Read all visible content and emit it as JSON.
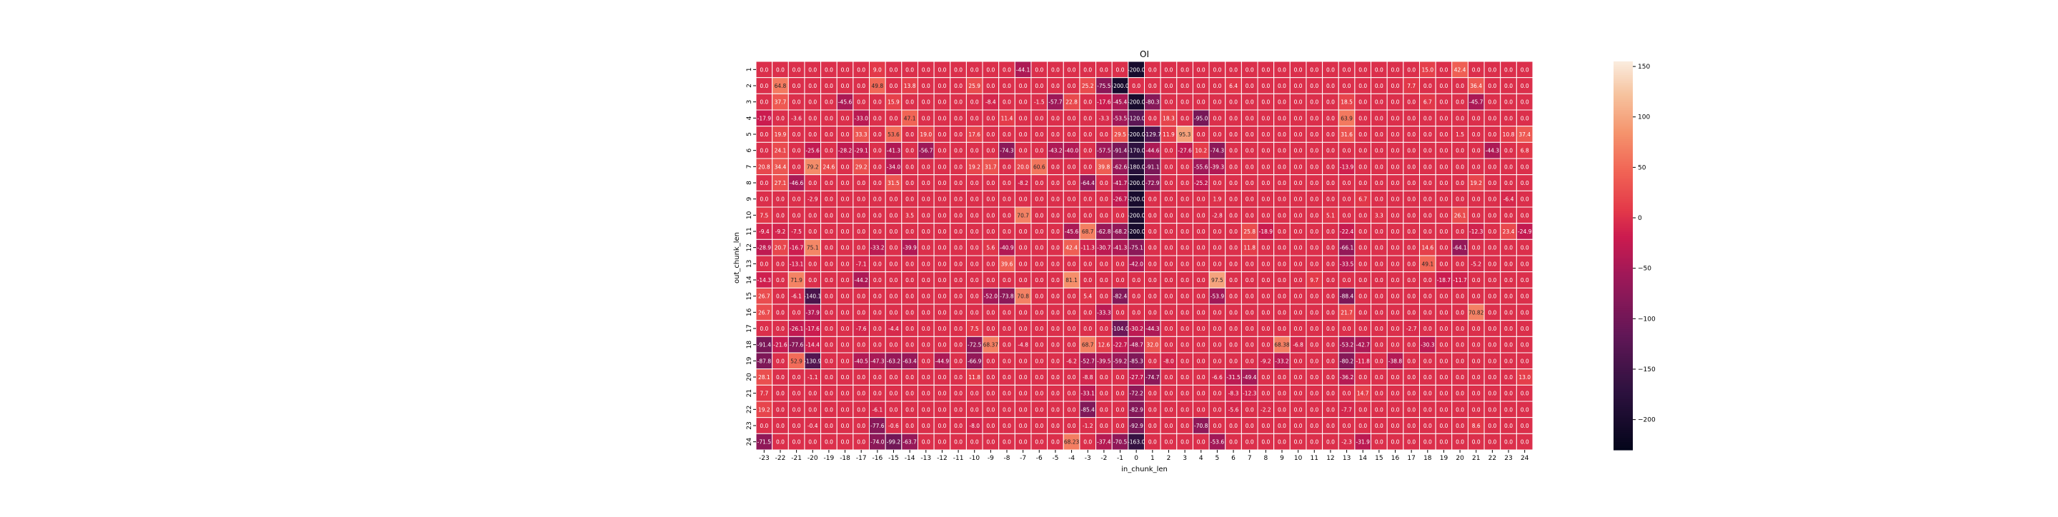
{
  "chart_data": {
    "type": "heatmap",
    "title": "OI",
    "xlabel": "in_chunk_len",
    "ylabel": "out_chunk_len",
    "x_categories": [
      "-23",
      "-22",
      "-21",
      "-20",
      "-19",
      "-18",
      "-17",
      "-16",
      "-15",
      "-14",
      "-13",
      "-12",
      "-11",
      "-10",
      "-9",
      "-8",
      "-7",
      "-6",
      "-5",
      "-4",
      "-3",
      "-2",
      "-1",
      "0",
      "1",
      "2",
      "3",
      "4",
      "5",
      "6",
      "7",
      "8",
      "9",
      "10",
      "11",
      "12",
      "13",
      "14",
      "15",
      "16",
      "17",
      "18",
      "19",
      "20",
      "21",
      "22",
      "23",
      "24"
    ],
    "y_categories": [
      "1",
      "2",
      "3",
      "4",
      "5",
      "6",
      "7",
      "8",
      "9",
      "10",
      "11",
      "12",
      "13",
      "14",
      "15",
      "16",
      "17",
      "18",
      "19",
      "20",
      "21",
      "22",
      "23",
      "24"
    ],
    "values": [
      [
        0,
        0,
        0,
        0,
        0,
        0,
        0,
        9,
        0,
        0,
        0,
        0,
        0,
        0,
        0,
        0,
        -44.1,
        0,
        0,
        0,
        0,
        0,
        0,
        -200,
        0,
        0,
        0,
        0,
        0,
        0,
        0,
        0,
        0,
        0,
        0,
        0,
        0,
        0,
        0,
        0,
        0,
        15,
        0,
        42.4,
        0,
        0,
        0,
        0
      ],
      [
        0,
        64.8,
        0,
        0,
        0,
        0,
        0,
        49.8,
        0,
        13.8,
        0,
        0,
        0,
        25.9,
        0,
        0,
        0,
        0,
        0,
        0,
        25.2,
        -75.5,
        -200,
        0,
        0,
        0,
        0,
        0,
        0,
        6.4,
        0,
        0,
        0,
        0,
        0,
        0,
        0,
        0,
        0,
        0,
        7.7,
        0,
        0,
        0,
        36.4,
        0,
        0,
        0
      ],
      [
        0,
        37.7,
        0,
        0,
        0,
        -45.6,
        0,
        0,
        15.9,
        0,
        0,
        0,
        0,
        0,
        -8.4,
        0,
        0,
        -1.5,
        -57.7,
        22.8,
        0,
        -17.6,
        -45.4,
        -200,
        -80.3,
        0,
        0,
        0,
        0,
        0,
        0,
        0,
        0,
        0,
        0,
        0,
        18.5,
        0,
        0,
        0,
        0,
        6.7,
        0,
        0,
        -45.7,
        0,
        0,
        0
      ],
      [
        -17.9,
        0,
        -3.6,
        0,
        0,
        0,
        -33,
        0,
        0,
        47.1,
        0,
        0,
        0,
        0,
        0,
        11.4,
        0,
        0,
        0,
        0,
        0,
        -3.3,
        -53.5,
        -120,
        0,
        18.3,
        0,
        -95,
        0,
        0,
        0,
        0,
        0,
        0,
        0,
        0,
        63.9,
        0,
        0,
        0,
        0,
        0,
        0,
        0,
        0,
        0,
        0,
        0
      ],
      [
        0,
        19.9,
        0,
        0,
        0,
        0,
        33.3,
        0,
        53.6,
        0,
        19,
        0,
        0,
        17.6,
        0,
        0,
        0,
        0,
        0,
        0,
        0,
        0,
        29.5,
        -200,
        -129.7,
        11.9,
        95.3,
        0,
        0,
        0,
        0,
        0,
        0,
        0,
        0,
        0,
        31.6,
        0,
        0,
        0,
        0,
        0,
        0,
        1.5,
        0,
        0,
        10.8,
        37.4
      ],
      [
        0,
        24.1,
        0,
        -25.6,
        0,
        -28.2,
        -29.1,
        0,
        -41.3,
        0,
        -56.7,
        0,
        0,
        0,
        0,
        -74.3,
        0,
        0,
        -43.2,
        -40,
        0,
        -57.5,
        -91.4,
        -170,
        -44.6,
        0,
        -27.6,
        10.2,
        -74.3,
        0,
        0,
        0,
        0,
        0,
        0,
        0,
        0,
        0,
        0,
        0,
        0,
        0,
        0,
        0,
        0,
        -44.3,
        0,
        6.8
      ],
      [
        20.8,
        34.4,
        0,
        79.2,
        24.6,
        0,
        29.2,
        0,
        -34,
        0,
        0,
        0,
        0,
        19.2,
        31.7,
        0,
        20,
        60.6,
        0,
        0,
        0,
        39.8,
        -62.6,
        -180,
        -91.1,
        0,
        0,
        -55.6,
        -39.3,
        0,
        0,
        0,
        0,
        0,
        0,
        0,
        -13.9,
        0,
        0,
        0,
        0,
        0,
        0,
        0,
        0,
        0,
        0,
        0
      ],
      [
        0,
        27.1,
        -46.6,
        0,
        0,
        0,
        0,
        0,
        31.5,
        0,
        0,
        0,
        0,
        0,
        0,
        0,
        -8.2,
        0,
        0,
        0,
        -64.4,
        0,
        -41.7,
        -200,
        -72.9,
        0,
        0,
        -25.2,
        0,
        0,
        0,
        0,
        0,
        0,
        0,
        0,
        0,
        0,
        0,
        0,
        0,
        0,
        0,
        0,
        19.2,
        0,
        0,
        0
      ],
      [
        0,
        0,
        0,
        -2.9,
        0,
        0,
        0,
        0,
        0,
        0,
        0,
        0,
        0,
        0,
        0,
        0,
        0,
        0,
        0,
        0,
        0,
        0,
        -26.7,
        -200,
        0,
        0,
        0,
        0,
        1.9,
        0,
        0,
        0,
        0,
        0,
        0,
        0,
        0,
        6.7,
        0,
        0,
        0,
        0,
        0,
        0,
        0,
        0,
        -6.4,
        0
      ],
      [
        7.5,
        0,
        0,
        0,
        0,
        0,
        0,
        0,
        0,
        3.5,
        0,
        0,
        0,
        0,
        0,
        0,
        70.7,
        0,
        0,
        0,
        0,
        0,
        0,
        -200,
        0,
        0,
        0,
        0,
        -2.8,
        0,
        0,
        0,
        0,
        0,
        0,
        5.1,
        0,
        0,
        3.3,
        0,
        0,
        0,
        0,
        26.1,
        0,
        0,
        0,
        0
      ],
      [
        -9.4,
        -9.2,
        -7.5,
        0,
        0,
        0,
        0,
        0,
        0,
        0,
        0,
        0,
        0,
        0,
        0,
        0,
        0,
        0,
        0,
        -45.6,
        68.7,
        -62.8,
        -68.2,
        -200,
        0,
        0,
        0,
        0,
        0,
        0,
        25.8,
        -18.9,
        0,
        0,
        0,
        0,
        -22.4,
        0,
        0,
        0,
        0,
        0,
        0,
        0,
        -12.3,
        0,
        23.4,
        -24.9
      ],
      [
        -28.9,
        20.7,
        -16.7,
        75.1,
        0,
        0,
        0,
        -33.2,
        0,
        -39.9,
        0,
        0,
        0,
        0,
        5.6,
        -40.9,
        0,
        0,
        0,
        42.4,
        -11.3,
        -30.7,
        -41.3,
        -75.1,
        0,
        0,
        0,
        0,
        0,
        0,
        11.8,
        0,
        0,
        0,
        0,
        0,
        -66.1,
        0,
        0,
        0,
        0,
        14.6,
        0,
        -64.1,
        0,
        0,
        0,
        0
      ],
      [
        0,
        0,
        -13.1,
        0,
        0,
        0,
        -7.1,
        0,
        0,
        0,
        0,
        0,
        0,
        0,
        0,
        39.6,
        0,
        0,
        0,
        0,
        0,
        0,
        0,
        -42,
        0,
        0,
        0,
        0,
        0,
        0,
        0,
        0,
        0,
        0,
        0,
        0,
        -33.5,
        0,
        0,
        0,
        0,
        49.1,
        0,
        0,
        -5.2,
        0,
        0,
        0
      ],
      [
        -14.3,
        0,
        71.9,
        0,
        0,
        0,
        -44.2,
        0,
        0,
        0,
        0,
        0,
        0,
        0,
        0,
        0,
        0,
        0,
        0,
        81.1,
        0,
        0,
        0,
        0,
        0,
        0,
        0,
        0,
        97.5,
        0,
        0,
        0,
        0,
        0,
        9.7,
        0,
        0,
        0,
        0,
        0,
        0,
        0,
        -18.7,
        -11.7,
        0,
        0,
        0,
        0
      ],
      [
        26.7,
        0,
        -6.1,
        -140.1,
        0,
        0,
        0,
        0,
        0,
        0,
        0,
        0,
        0,
        0,
        -52,
        -73.8,
        70.8,
        0,
        0,
        0,
        5.4,
        0,
        -82.4,
        0,
        0,
        0,
        0,
        0,
        -53.9,
        0,
        0,
        0,
        0,
        0,
        0,
        0,
        -88.4,
        0,
        0,
        0,
        0,
        0,
        0,
        0,
        0,
        0,
        0,
        0
      ],
      [
        26.7,
        0,
        0,
        -37.9,
        0,
        0,
        0,
        0,
        0,
        0,
        0,
        0,
        0,
        0,
        0,
        0,
        0,
        0,
        0,
        0,
        0,
        -33.3,
        0,
        0,
        0,
        0,
        0,
        0,
        0,
        0,
        0,
        0,
        0,
        0,
        0,
        0,
        21.7,
        0,
        0,
        0,
        0,
        0,
        0,
        0,
        70.82,
        0,
        0,
        0
      ],
      [
        0,
        0,
        -26.1,
        -17.6,
        0,
        0,
        -7.6,
        0,
        -4.4,
        0,
        0,
        0,
        0,
        7.5,
        0,
        0,
        0,
        0,
        0,
        0,
        0,
        0,
        -104,
        -30.2,
        -44.3,
        0,
        0,
        0,
        0,
        0,
        0,
        0,
        0,
        0,
        0,
        0,
        0,
        0,
        0,
        0,
        -2.7,
        0,
        0,
        0,
        0,
        0,
        0,
        0
      ],
      [
        -91.4,
        -21.6,
        -77.6,
        -14.4,
        0,
        0,
        0,
        0,
        0,
        0,
        0,
        0,
        0,
        -72.5,
        68.37,
        0,
        -4.8,
        0,
        0,
        0,
        68.7,
        12.6,
        -22.7,
        -48.7,
        32,
        0,
        0,
        0,
        0,
        0,
        0,
        0,
        68.38,
        -6.8,
        0,
        0,
        -53.2,
        -42.7,
        0,
        0,
        0,
        -30.3,
        0,
        0,
        0,
        0,
        0,
        0
      ],
      [
        -87.8,
        0,
        52.9,
        -130.9,
        0,
        0,
        -40.5,
        -47.3,
        -63.2,
        -63.4,
        0,
        -44.9,
        0,
        -66.9,
        0,
        0,
        0,
        0,
        0,
        -6.2,
        -52.7,
        -39.5,
        -59.2,
        -85.3,
        0,
        -8,
        0,
        0,
        0,
        0,
        0,
        -9.2,
        -33.2,
        0,
        0,
        0,
        -80.2,
        -11.8,
        0,
        -38.8,
        0,
        0,
        0,
        0,
        0,
        0,
        0,
        0
      ],
      [
        28.1,
        0,
        0,
        -1.1,
        0,
        0,
        0,
        0,
        0,
        0,
        0,
        0,
        0,
        11.8,
        0,
        0,
        0,
        0,
        0,
        0,
        -8.8,
        0,
        0,
        -27.7,
        -74.7,
        0,
        0,
        0,
        -6.6,
        -31.5,
        -49.4,
        0,
        0,
        0,
        0,
        0,
        -36.2,
        0,
        0,
        0,
        0,
        0,
        0,
        0,
        0,
        0,
        0,
        13
      ],
      [
        7.7,
        0,
        0,
        0,
        0,
        0,
        0,
        0,
        0,
        0,
        0,
        0,
        0,
        0,
        0,
        0,
        0,
        0,
        0,
        0,
        -33.1,
        0,
        0,
        -72.2,
        0,
        0,
        0,
        0,
        0,
        -8.3,
        -12.3,
        0,
        0,
        0,
        0,
        0,
        0,
        14.7,
        0,
        0,
        0,
        0,
        0,
        0,
        0,
        0,
        0,
        0
      ],
      [
        19.2,
        0,
        0,
        0,
        0,
        0,
        0,
        -6.1,
        0,
        0,
        0,
        0,
        0,
        0,
        0,
        0,
        0,
        0,
        0,
        0,
        -85.4,
        0,
        0,
        -82.9,
        0,
        0,
        0,
        0,
        0,
        -5.6,
        0,
        -2.2,
        0,
        0,
        0,
        0,
        -7.7,
        0,
        0,
        0,
        0,
        0,
        0,
        0,
        0,
        0,
        0,
        0
      ],
      [
        0,
        0,
        0,
        -0.4,
        0,
        0,
        0,
        -77.6,
        -0.6,
        0,
        0,
        0,
        0,
        -8,
        0,
        0,
        0,
        0,
        0,
        0,
        -1.2,
        0,
        0,
        -92.9,
        0,
        0,
        0,
        -70.8,
        0,
        0,
        0,
        0,
        0,
        0,
        0,
        0,
        0,
        0,
        0,
        0,
        0,
        0,
        0,
        0,
        8.6,
        0,
        0,
        0
      ],
      [
        -71.5,
        0,
        0,
        0,
        0,
        0,
        0,
        -74,
        -99.2,
        -63.7,
        0,
        0,
        0,
        0,
        0,
        0,
        0,
        0,
        0,
        68.23,
        0,
        -37.4,
        -70.5,
        -163,
        0,
        0,
        0,
        0,
        -53.6,
        0,
        0,
        0,
        0,
        0,
        0,
        0,
        -2.3,
        -31.9,
        0,
        0,
        0,
        0,
        0,
        0,
        0,
        0,
        0,
        0
      ]
    ],
    "vmin": -230,
    "vmax": 155,
    "colorbar_ticks": [
      150,
      100,
      50,
      0,
      -50,
      -100,
      -150,
      -200
    ],
    "colormap": "rocket",
    "cell_labels": "annotated, 1 decimal",
    "grid": false,
    "legend": "colorbar-right"
  }
}
